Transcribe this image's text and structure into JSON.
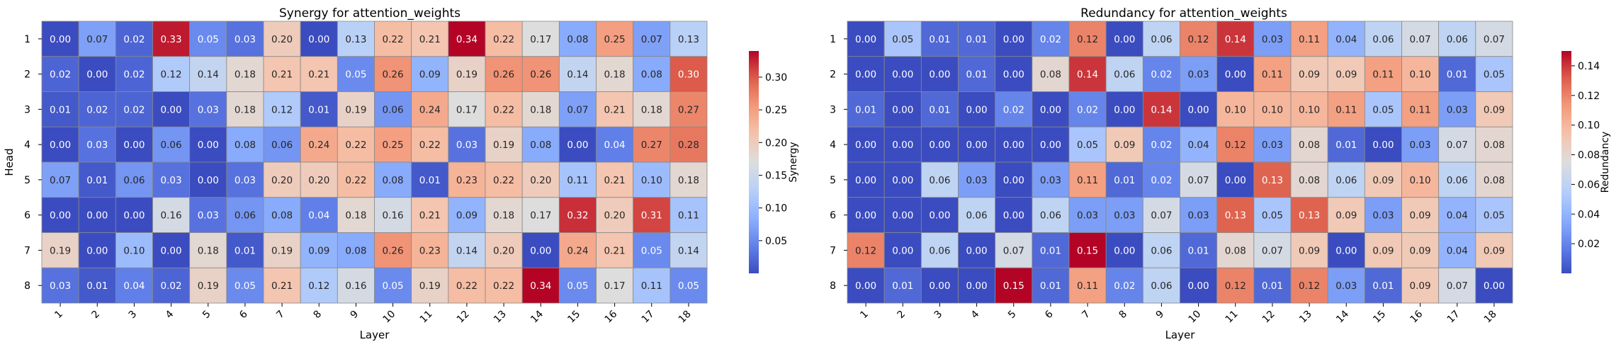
{
  "chart_data": [
    {
      "type": "heatmap",
      "title": "Synergy for attention_weights",
      "xlabel": "Layer",
      "ylabel": "Head",
      "colorbar_label": "Synergy",
      "colormap": "coolwarm",
      "vmin": 0.0,
      "vmax": 0.34,
      "colorbar_ticks": [
        "0.05",
        "0.10",
        "0.15",
        "0.20",
        "0.25",
        "0.30"
      ],
      "x": [
        "1",
        "2",
        "3",
        "4",
        "5",
        "6",
        "7",
        "8",
        "9",
        "10",
        "11",
        "12",
        "13",
        "14",
        "15",
        "16",
        "17",
        "18"
      ],
      "y": [
        "1",
        "2",
        "3",
        "4",
        "5",
        "6",
        "7",
        "8"
      ],
      "values": [
        [
          0.0,
          0.07,
          0.02,
          0.33,
          0.05,
          0.03,
          0.2,
          0.0,
          0.13,
          0.22,
          0.21,
          0.34,
          0.22,
          0.17,
          0.08,
          0.25,
          0.07,
          0.13
        ],
        [
          0.02,
          0.0,
          0.02,
          0.12,
          0.14,
          0.18,
          0.21,
          0.21,
          0.05,
          0.26,
          0.09,
          0.19,
          0.26,
          0.26,
          0.14,
          0.18,
          0.08,
          0.3
        ],
        [
          0.01,
          0.02,
          0.02,
          0.0,
          0.03,
          0.18,
          0.12,
          0.01,
          0.19,
          0.06,
          0.24,
          0.17,
          0.22,
          0.18,
          0.07,
          0.21,
          0.18,
          0.27
        ],
        [
          0.0,
          0.03,
          0.0,
          0.06,
          0.0,
          0.08,
          0.06,
          0.24,
          0.22,
          0.25,
          0.22,
          0.03,
          0.19,
          0.08,
          0.0,
          0.04,
          0.27,
          0.28
        ],
        [
          0.07,
          0.01,
          0.06,
          0.03,
          0.0,
          0.03,
          0.2,
          0.2,
          0.22,
          0.08,
          0.01,
          0.23,
          0.22,
          0.2,
          0.11,
          0.21,
          0.1,
          0.18
        ],
        [
          0.0,
          0.0,
          0.0,
          0.16,
          0.03,
          0.06,
          0.08,
          0.04,
          0.18,
          0.16,
          0.21,
          0.09,
          0.18,
          0.17,
          0.32,
          0.2,
          0.31,
          0.11
        ],
        [
          0.19,
          0.0,
          0.1,
          0.0,
          0.18,
          0.01,
          0.19,
          0.09,
          0.08,
          0.26,
          0.23,
          0.14,
          0.2,
          0.0,
          0.24,
          0.21,
          0.05,
          0.14
        ],
        [
          0.03,
          0.01,
          0.04,
          0.02,
          0.19,
          0.05,
          0.21,
          0.12,
          0.16,
          0.05,
          0.19,
          0.22,
          0.22,
          0.34,
          0.05,
          0.17,
          0.11,
          0.05
        ]
      ]
    },
    {
      "type": "heatmap",
      "title": "Redundancy for attention_weights",
      "xlabel": "Layer",
      "ylabel": "",
      "colorbar_label": "Redundancy",
      "colormap": "coolwarm",
      "vmin": 0.0,
      "vmax": 0.15,
      "colorbar_ticks": [
        "0.02",
        "0.04",
        "0.06",
        "0.08",
        "0.10",
        "0.12",
        "0.14"
      ],
      "x": [
        "1",
        "2",
        "3",
        "4",
        "5",
        "6",
        "7",
        "8",
        "9",
        "10",
        "11",
        "12",
        "13",
        "14",
        "15",
        "16",
        "17",
        "18"
      ],
      "y": [
        "1",
        "2",
        "3",
        "4",
        "5",
        "6",
        "7",
        "8"
      ],
      "values": [
        [
          0.0,
          0.05,
          0.01,
          0.01,
          0.0,
          0.02,
          0.12,
          0.0,
          0.06,
          0.12,
          0.14,
          0.03,
          0.11,
          0.04,
          0.06,
          0.07,
          0.06,
          0.07
        ],
        [
          0.0,
          0.0,
          0.0,
          0.01,
          0.0,
          0.08,
          0.14,
          0.06,
          0.02,
          0.03,
          0.0,
          0.11,
          0.09,
          0.09,
          0.11,
          0.1,
          0.01,
          0.05
        ],
        [
          0.01,
          0.0,
          0.01,
          0.0,
          0.02,
          0.0,
          0.02,
          0.0,
          0.14,
          0.0,
          0.1,
          0.1,
          0.1,
          0.11,
          0.05,
          0.11,
          0.03,
          0.09
        ],
        [
          0.0,
          0.0,
          0.0,
          0.0,
          0.0,
          0.0,
          0.05,
          0.09,
          0.02,
          0.04,
          0.12,
          0.03,
          0.08,
          0.01,
          0.0,
          0.03,
          0.07,
          0.08
        ],
        [
          0.0,
          0.0,
          0.06,
          0.03,
          0.0,
          0.03,
          0.11,
          0.01,
          0.02,
          0.07,
          0.0,
          0.13,
          0.08,
          0.06,
          0.09,
          0.1,
          0.06,
          0.08
        ],
        [
          0.0,
          0.0,
          0.0,
          0.06,
          0.0,
          0.06,
          0.03,
          0.03,
          0.07,
          0.03,
          0.13,
          0.05,
          0.13,
          0.09,
          0.03,
          0.09,
          0.04,
          0.05
        ],
        [
          0.12,
          0.0,
          0.06,
          0.0,
          0.07,
          0.01,
          0.15,
          0.0,
          0.06,
          0.01,
          0.08,
          0.07,
          0.09,
          0.0,
          0.09,
          0.09,
          0.04,
          0.09
        ],
        [
          0.0,
          0.01,
          0.0,
          0.0,
          0.15,
          0.01,
          0.11,
          0.02,
          0.06,
          0.0,
          0.12,
          0.01,
          0.12,
          0.03,
          0.01,
          0.09,
          0.07,
          0.0
        ]
      ]
    }
  ]
}
